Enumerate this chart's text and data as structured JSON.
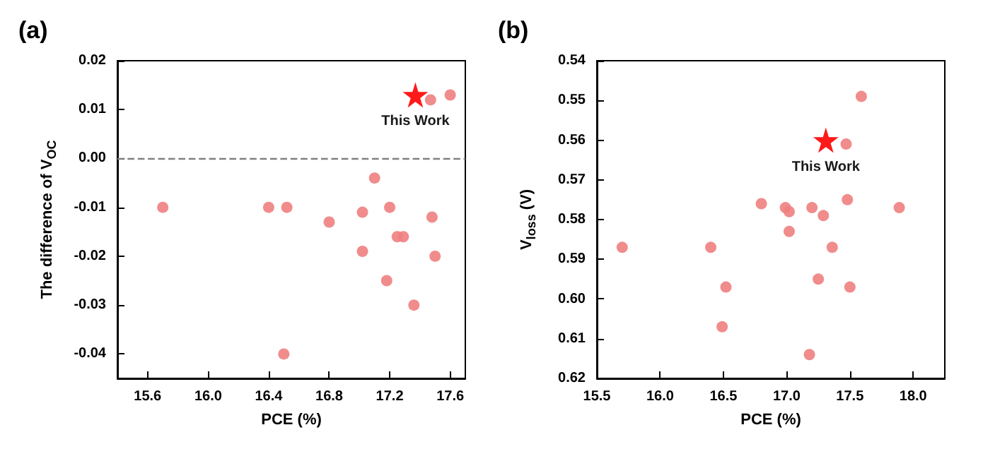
{
  "chart_data": [
    {
      "type": "scatter",
      "title": "(a)",
      "xlabel": "PCE (%)",
      "ylabel": "The difference of V$_{OC}$",
      "xlim": [
        15.4,
        17.7
      ],
      "xticks": [
        15.6,
        {
          "value": 16,
          "label": "16.0"
        },
        16.4,
        16.8,
        17.2,
        17.6
      ],
      "ylim": [
        -0.045,
        0.02
      ],
      "yticks": [
        -0.04,
        -0.03,
        -0.02,
        -0.01,
        {
          "value": 0,
          "label": "0.00"
        },
        0.01,
        0.02
      ],
      "grid": false,
      "legend": false,
      "ref_lines": [
        {
          "axis": "y",
          "value": 0,
          "line_style": "dashed",
          "color": "#808080"
        }
      ],
      "series": [
        {
          "color": "#f08080",
          "marker": "circle",
          "x": [
            15.7,
            16.4,
            16.52,
            16.5,
            16.8,
            17.02,
            17.02,
            17.1,
            17.2,
            17.18,
            17.25,
            17.29,
            17.36,
            17.48,
            17.5,
            17.47,
            17.6
          ],
          "values": [
            -0.01,
            -0.01,
            -0.01,
            -0.04,
            -0.013,
            -0.011,
            -0.019,
            -0.004,
            -0.01,
            -0.025,
            -0.016,
            -0.016,
            -0.03,
            -0.012,
            -0.02,
            0.012,
            0.013
          ]
        },
        {
          "name": "This Work",
          "color": "#ff0000",
          "marker": "star",
          "x": [
            17.37
          ],
          "values": [
            0.013
          ]
        }
      ]
    },
    {
      "type": "scatter",
      "title": "(b)",
      "xlabel": "PCE (%)",
      "ylabel": "V$_{loss}$ (V)",
      "xlim": [
        15.5,
        18.25
      ],
      "xticks": [
        15.5,
        {
          "value": 16,
          "label": "16.0"
        },
        16.5,
        {
          "value": 17,
          "label": "17.0"
        },
        17.5,
        {
          "value": 18,
          "label": "18.0"
        }
      ],
      "ylim": [
        0.62,
        0.54
      ],
      "yticks": [
        0.54,
        0.55,
        0.56,
        0.57,
        0.58,
        0.59,
        {
          "value": 0.6,
          "label": "0.60"
        },
        0.61,
        0.62
      ],
      "grid": false,
      "legend": false,
      "series": [
        {
          "color": "#f08080",
          "marker": "circle",
          "x": [
            15.7,
            16.4,
            16.52,
            16.49,
            16.8,
            16.99,
            17.02,
            17.02,
            17.2,
            17.18,
            17.25,
            17.29,
            17.36,
            17.48,
            17.47,
            17.5,
            17.59,
            17.89
          ],
          "values": [
            0.587,
            0.587,
            0.597,
            0.607,
            0.576,
            0.577,
            0.578,
            0.583,
            0.577,
            0.614,
            0.595,
            0.579,
            0.587,
            0.575,
            0.561,
            0.597,
            0.549,
            0.577
          ]
        },
        {
          "name": "This Work",
          "color": "#ff0000",
          "marker": "star",
          "x": [
            17.31
          ],
          "values": [
            0.56
          ]
        }
      ]
    }
  ]
}
